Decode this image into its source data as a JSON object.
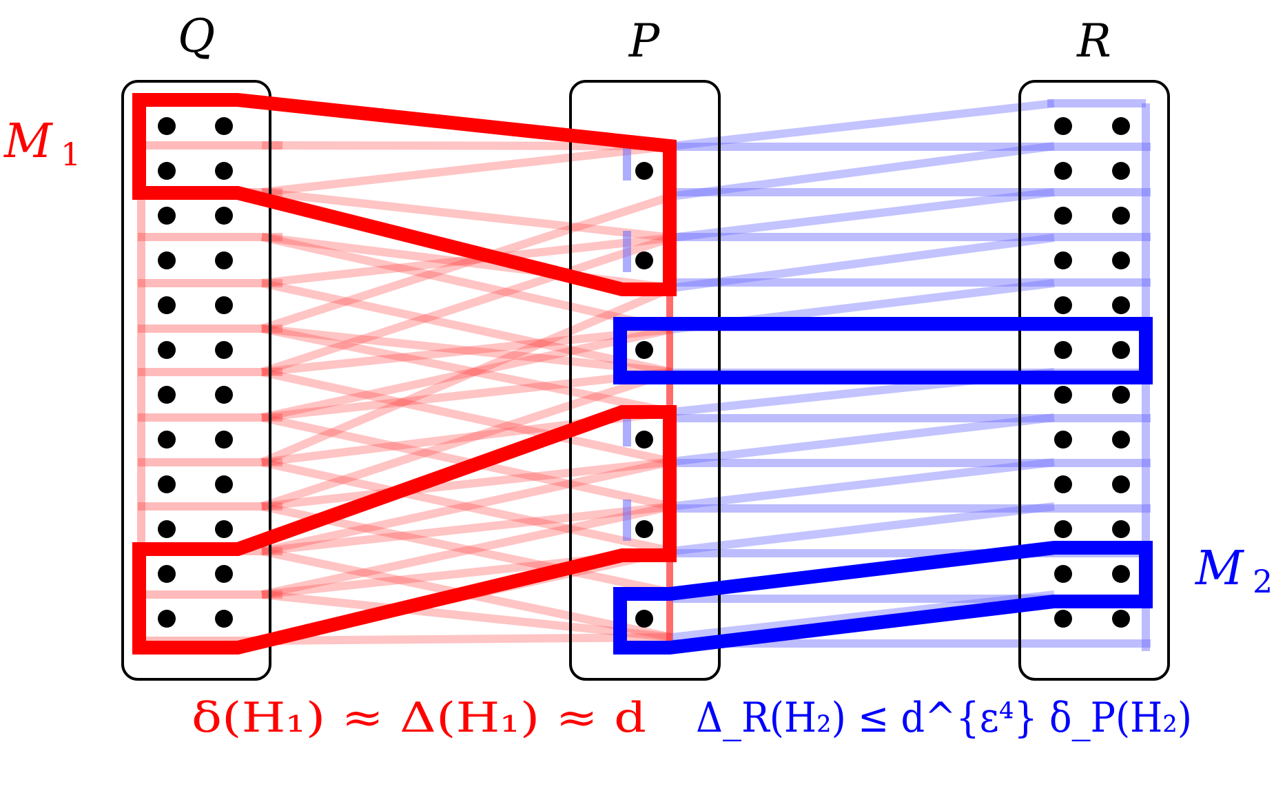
{
  "labels": {
    "q": "Q",
    "p": "P",
    "r": "R",
    "m1_main": "M",
    "m1_sub": "1",
    "m2_main": "M",
    "m2_sub": "2"
  },
  "captions": {
    "left": "δ(H₁) ≈ Δ(H₁) ≈ d",
    "right": "Δ_R(H₂) ≤ d^{ε⁴} δ_P(H₂)"
  },
  "colors": {
    "red": "#ff0000",
    "red_light": "#ff8a8a",
    "blue": "#0000ff",
    "blue_light": "#a6a6ff",
    "black": "#000000"
  }
}
